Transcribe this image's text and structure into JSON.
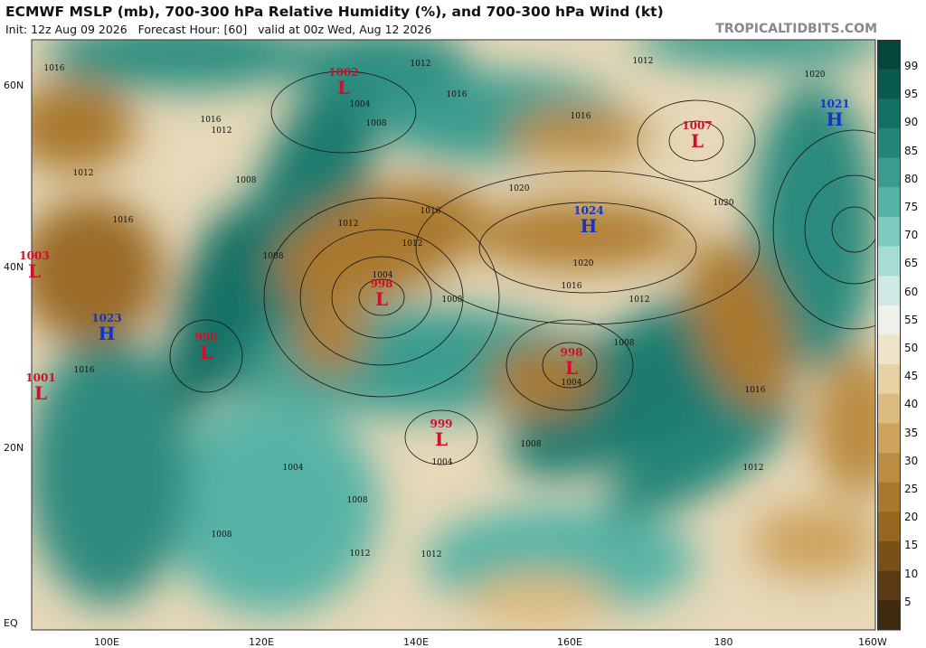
{
  "header": {
    "title": "ECMWF MSLP (mb), 700-300 hPa Relative Humidity (%), and 700-300 hPa Wind (kt)",
    "subtitle": "Init: 12z Aug 09 2026   Forecast Hour: [60]   valid at 00z Wed, Aug 12 2026",
    "credit": "TROPICALTIDBITS.COM"
  },
  "map": {
    "lat_labels": [
      "60N",
      "40N",
      "20N",
      "EQ"
    ],
    "lon_labels": [
      "100E",
      "120E",
      "140E",
      "160E",
      "180",
      "160W"
    ],
    "centers": [
      {
        "kind": "L",
        "pressure": "1002"
      },
      {
        "kind": "L",
        "pressure": "1007"
      },
      {
        "kind": "H",
        "pressure": "1021"
      },
      {
        "kind": "H",
        "pressure": "1024"
      },
      {
        "kind": "L",
        "pressure": "1003"
      },
      {
        "kind": "L",
        "pressure": "998"
      },
      {
        "kind": "H",
        "pressure": "1023"
      },
      {
        "kind": "L",
        "pressure": "996"
      },
      {
        "kind": "L",
        "pressure": "998"
      },
      {
        "kind": "L",
        "pressure": "1001"
      },
      {
        "kind": "L",
        "pressure": "999"
      }
    ],
    "isobar_labels": [
      "1016",
      "1012",
      "1012",
      "1016",
      "1020",
      "1020",
      "1020",
      "1016",
      "1012",
      "1020",
      "1016",
      "1012",
      "1008",
      "1008",
      "1004",
      "1016",
      "1008",
      "1004",
      "1012",
      "1004",
      "1008",
      "1012",
      "1012",
      "1008",
      "1016",
      "1008",
      "1004",
      "1012",
      "1016",
      "1012",
      "1008",
      "1016",
      "1012",
      "1008",
      "1004",
      "1016"
    ]
  },
  "colorbar": {
    "ticks": [
      "99",
      "95",
      "90",
      "85",
      "80",
      "75",
      "70",
      "65",
      "60",
      "55",
      "50",
      "45",
      "40",
      "35",
      "30",
      "25",
      "20",
      "15",
      "10",
      "5"
    ]
  }
}
